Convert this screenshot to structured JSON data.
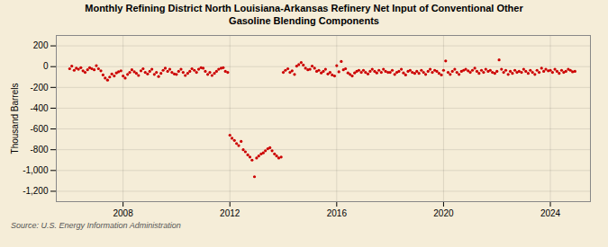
{
  "chart_data": {
    "type": "scatter",
    "title": "Monthly Refining District North Louisiana-Arkansas Refinery Net Input of Conventional Other\nGasoline Blending Components",
    "ylabel": "Thousand Barrels",
    "source": "Source: U.S. Energy Information Administration",
    "color": "#cc0000",
    "grid": true,
    "xlim": [
      2005.5,
      2025.5
    ],
    "xticks": [
      2008,
      2012,
      2016,
      2020,
      2024
    ],
    "ylim": [
      -1300,
      300
    ],
    "yticks": [
      {
        "value": -1200,
        "label": "-1,200"
      },
      {
        "value": -1000,
        "label": "-1,000"
      },
      -800,
      -600,
      -400,
      -200,
      0,
      200
    ],
    "x": [
      2006.0,
      2006.08,
      2006.17,
      2006.25,
      2006.33,
      2006.42,
      2006.5,
      2006.58,
      2006.67,
      2006.75,
      2006.83,
      2006.92,
      2007.0,
      2007.08,
      2007.17,
      2007.25,
      2007.33,
      2007.42,
      2007.5,
      2007.58,
      2007.67,
      2007.75,
      2007.83,
      2007.92,
      2008.0,
      2008.08,
      2008.17,
      2008.25,
      2008.33,
      2008.42,
      2008.5,
      2008.58,
      2008.67,
      2008.75,
      2008.83,
      2008.92,
      2009.0,
      2009.08,
      2009.17,
      2009.25,
      2009.33,
      2009.42,
      2009.5,
      2009.58,
      2009.67,
      2009.75,
      2009.83,
      2009.92,
      2010.0,
      2010.08,
      2010.17,
      2010.25,
      2010.33,
      2010.42,
      2010.5,
      2010.58,
      2010.67,
      2010.75,
      2010.83,
      2010.92,
      2011.0,
      2011.08,
      2011.17,
      2011.25,
      2011.33,
      2011.42,
      2011.5,
      2011.58,
      2011.67,
      2011.75,
      2011.83,
      2011.92,
      2012.0,
      2012.08,
      2012.17,
      2012.25,
      2012.33,
      2012.42,
      2012.5,
      2012.58,
      2012.67,
      2012.75,
      2012.83,
      2012.92,
      2013.0,
      2013.08,
      2013.17,
      2013.25,
      2013.33,
      2013.42,
      2013.5,
      2013.58,
      2013.67,
      2013.75,
      2013.83,
      2013.92,
      2014.0,
      2014.08,
      2014.17,
      2014.25,
      2014.33,
      2014.42,
      2014.5,
      2014.58,
      2014.67,
      2014.75,
      2014.83,
      2014.92,
      2015.0,
      2015.08,
      2015.17,
      2015.25,
      2015.33,
      2015.42,
      2015.5,
      2015.58,
      2015.67,
      2015.75,
      2015.83,
      2015.92,
      2016.0,
      2016.08,
      2016.17,
      2016.25,
      2016.33,
      2016.42,
      2016.5,
      2016.58,
      2016.67,
      2016.75,
      2016.83,
      2016.92,
      2017.0,
      2017.08,
      2017.17,
      2017.25,
      2017.33,
      2017.42,
      2017.5,
      2017.58,
      2017.67,
      2017.75,
      2017.83,
      2017.92,
      2018.0,
      2018.08,
      2018.17,
      2018.25,
      2018.33,
      2018.42,
      2018.5,
      2018.58,
      2018.67,
      2018.75,
      2018.83,
      2018.92,
      2019.0,
      2019.08,
      2019.17,
      2019.25,
      2019.33,
      2019.42,
      2019.5,
      2019.58,
      2019.67,
      2019.75,
      2019.83,
      2019.92,
      2020.0,
      2020.08,
      2020.17,
      2020.25,
      2020.33,
      2020.42,
      2020.5,
      2020.58,
      2020.67,
      2020.75,
      2020.83,
      2020.92,
      2021.0,
      2021.08,
      2021.17,
      2021.25,
      2021.33,
      2021.42,
      2021.5,
      2021.58,
      2021.67,
      2021.75,
      2021.83,
      2021.92,
      2022.0,
      2022.08,
      2022.17,
      2022.25,
      2022.33,
      2022.42,
      2022.5,
      2022.58,
      2022.67,
      2022.75,
      2022.83,
      2022.92,
      2023.0,
      2023.08,
      2023.17,
      2023.25,
      2023.33,
      2023.42,
      2023.5,
      2023.58,
      2023.67,
      2023.75,
      2023.83,
      2023.92,
      2024.0,
      2024.08,
      2024.17,
      2024.25,
      2024.33,
      2024.42,
      2024.5,
      2024.58,
      2024.67,
      2024.75,
      2024.83,
      2024.92
    ],
    "values": [
      -20,
      5,
      -35,
      -15,
      -25,
      -10,
      -40,
      -55,
      -30,
      -10,
      -20,
      -30,
      10,
      -20,
      -40,
      -80,
      -110,
      -130,
      -100,
      -70,
      -90,
      -60,
      -50,
      -40,
      -90,
      -110,
      -75,
      -55,
      -30,
      -50,
      -65,
      -85,
      -40,
      -20,
      -55,
      -70,
      -45,
      -25,
      -75,
      -55,
      -95,
      -65,
      -35,
      -15,
      -45,
      -25,
      -55,
      -70,
      -75,
      -45,
      -25,
      -55,
      -85,
      -65,
      -45,
      -20,
      -35,
      -55,
      -25,
      -10,
      -15,
      -45,
      -75,
      -55,
      -85,
      -65,
      -45,
      -25,
      -15,
      -10,
      -45,
      -55,
      -660,
      -690,
      -710,
      -740,
      -760,
      -720,
      -800,
      -820,
      -850,
      -870,
      -900,
      -1060,
      -880,
      -860,
      -840,
      -830,
      -810,
      -790,
      -780,
      -810,
      -840,
      -860,
      -880,
      -870,
      -55,
      -35,
      -20,
      -55,
      -40,
      -75,
      5,
      20,
      40,
      15,
      -15,
      -30,
      -25,
      5,
      -15,
      -45,
      -35,
      -60,
      -45,
      -25,
      -70,
      -55,
      -80,
      -90,
      10,
      -50,
      50,
      -30,
      -20,
      -60,
      -75,
      -90,
      -60,
      -45,
      -35,
      -55,
      -35,
      -55,
      -70,
      -45,
      -25,
      -45,
      -60,
      -35,
      -55,
      -25,
      -45,
      -55,
      -55,
      -35,
      -75,
      -55,
      -45,
      -25,
      -60,
      -80,
      -45,
      -35,
      -55,
      -65,
      -45,
      -65,
      -35,
      -55,
      -75,
      -45,
      -25,
      -55,
      -35,
      -45,
      -65,
      -80,
      -35,
      55,
      -55,
      -75,
      -45,
      -25,
      -55,
      -75,
      -45,
      -35,
      -25,
      -40,
      -55,
      -35,
      -15,
      -45,
      -65,
      -35,
      -55,
      -25,
      -45,
      -35,
      -55,
      -65,
      -45,
      65,
      -25,
      -55,
      -35,
      -75,
      -45,
      -65,
      -35,
      -55,
      -45,
      -55,
      -25,
      -45,
      -65,
      -35,
      -55,
      -75,
      -35,
      -55,
      -15,
      -45,
      -25,
      -40,
      -35,
      -55,
      -25,
      -45,
      -65,
      -35,
      -55,
      -45,
      -25,
      -35,
      -50,
      -45
    ]
  }
}
